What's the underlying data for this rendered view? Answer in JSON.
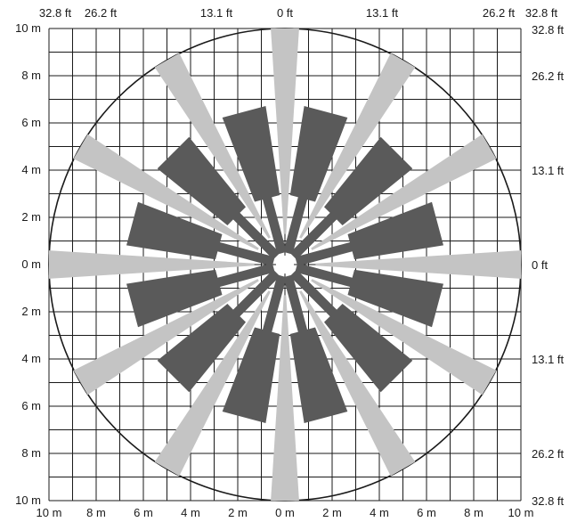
{
  "diagram": {
    "grid_units": "m",
    "grid_range": [
      -10,
      10
    ],
    "grid_step": 1,
    "colors": {
      "background": "#ffffff",
      "grid": "#1a1a1a",
      "circle": "#1a1a1a",
      "long_range_zone": "#c4c4c4",
      "short_range_zone": "#5a5a5a",
      "center_hole": "#ffffff"
    },
    "left_axis_labels": [
      "10 m",
      "8 m",
      "6 m",
      "4 m",
      "2 m",
      "0 m",
      "2 m",
      "4 m",
      "6 m",
      "8 m",
      "10 m"
    ],
    "bottom_axis_labels": [
      "10 m",
      "8 m",
      "6 m",
      "4 m",
      "2 m",
      "0 m",
      "2 m",
      "4 m",
      "6 m",
      "8 m",
      "10 m"
    ],
    "top_axis_labels": [
      "32.8 ft",
      "26.2 ft",
      "13.1 ft",
      "0 ft",
      "13.1 ft",
      "26.2 ft",
      "32.8 ft"
    ],
    "right_axis_labels": [
      "32.8 ft",
      "26.2 ft",
      "13.1 ft",
      "0 ft",
      "13.1 ft",
      "26.2 ft",
      "32.8 ft"
    ],
    "long_range_zones": {
      "count": 12,
      "first_angle_deg": 0,
      "angle_step_deg": 30,
      "inner_radius_m": 1.3,
      "outer_radius_m": 10,
      "half_width_inner_m": 0.05,
      "half_width_outer_m": 0.6
    },
    "short_range_zones": {
      "count": 12,
      "first_angle_deg": 15,
      "angle_step_deg": 30,
      "inner_radius_m": 0.5,
      "step_radius_m": 2.9,
      "outer_radius_m": 6.7,
      "half_width_neck_m": 0.2,
      "half_width_step_m": 0.55,
      "half_width_outer_m": 0.95
    },
    "center_hole_radius_m": 0.38
  }
}
